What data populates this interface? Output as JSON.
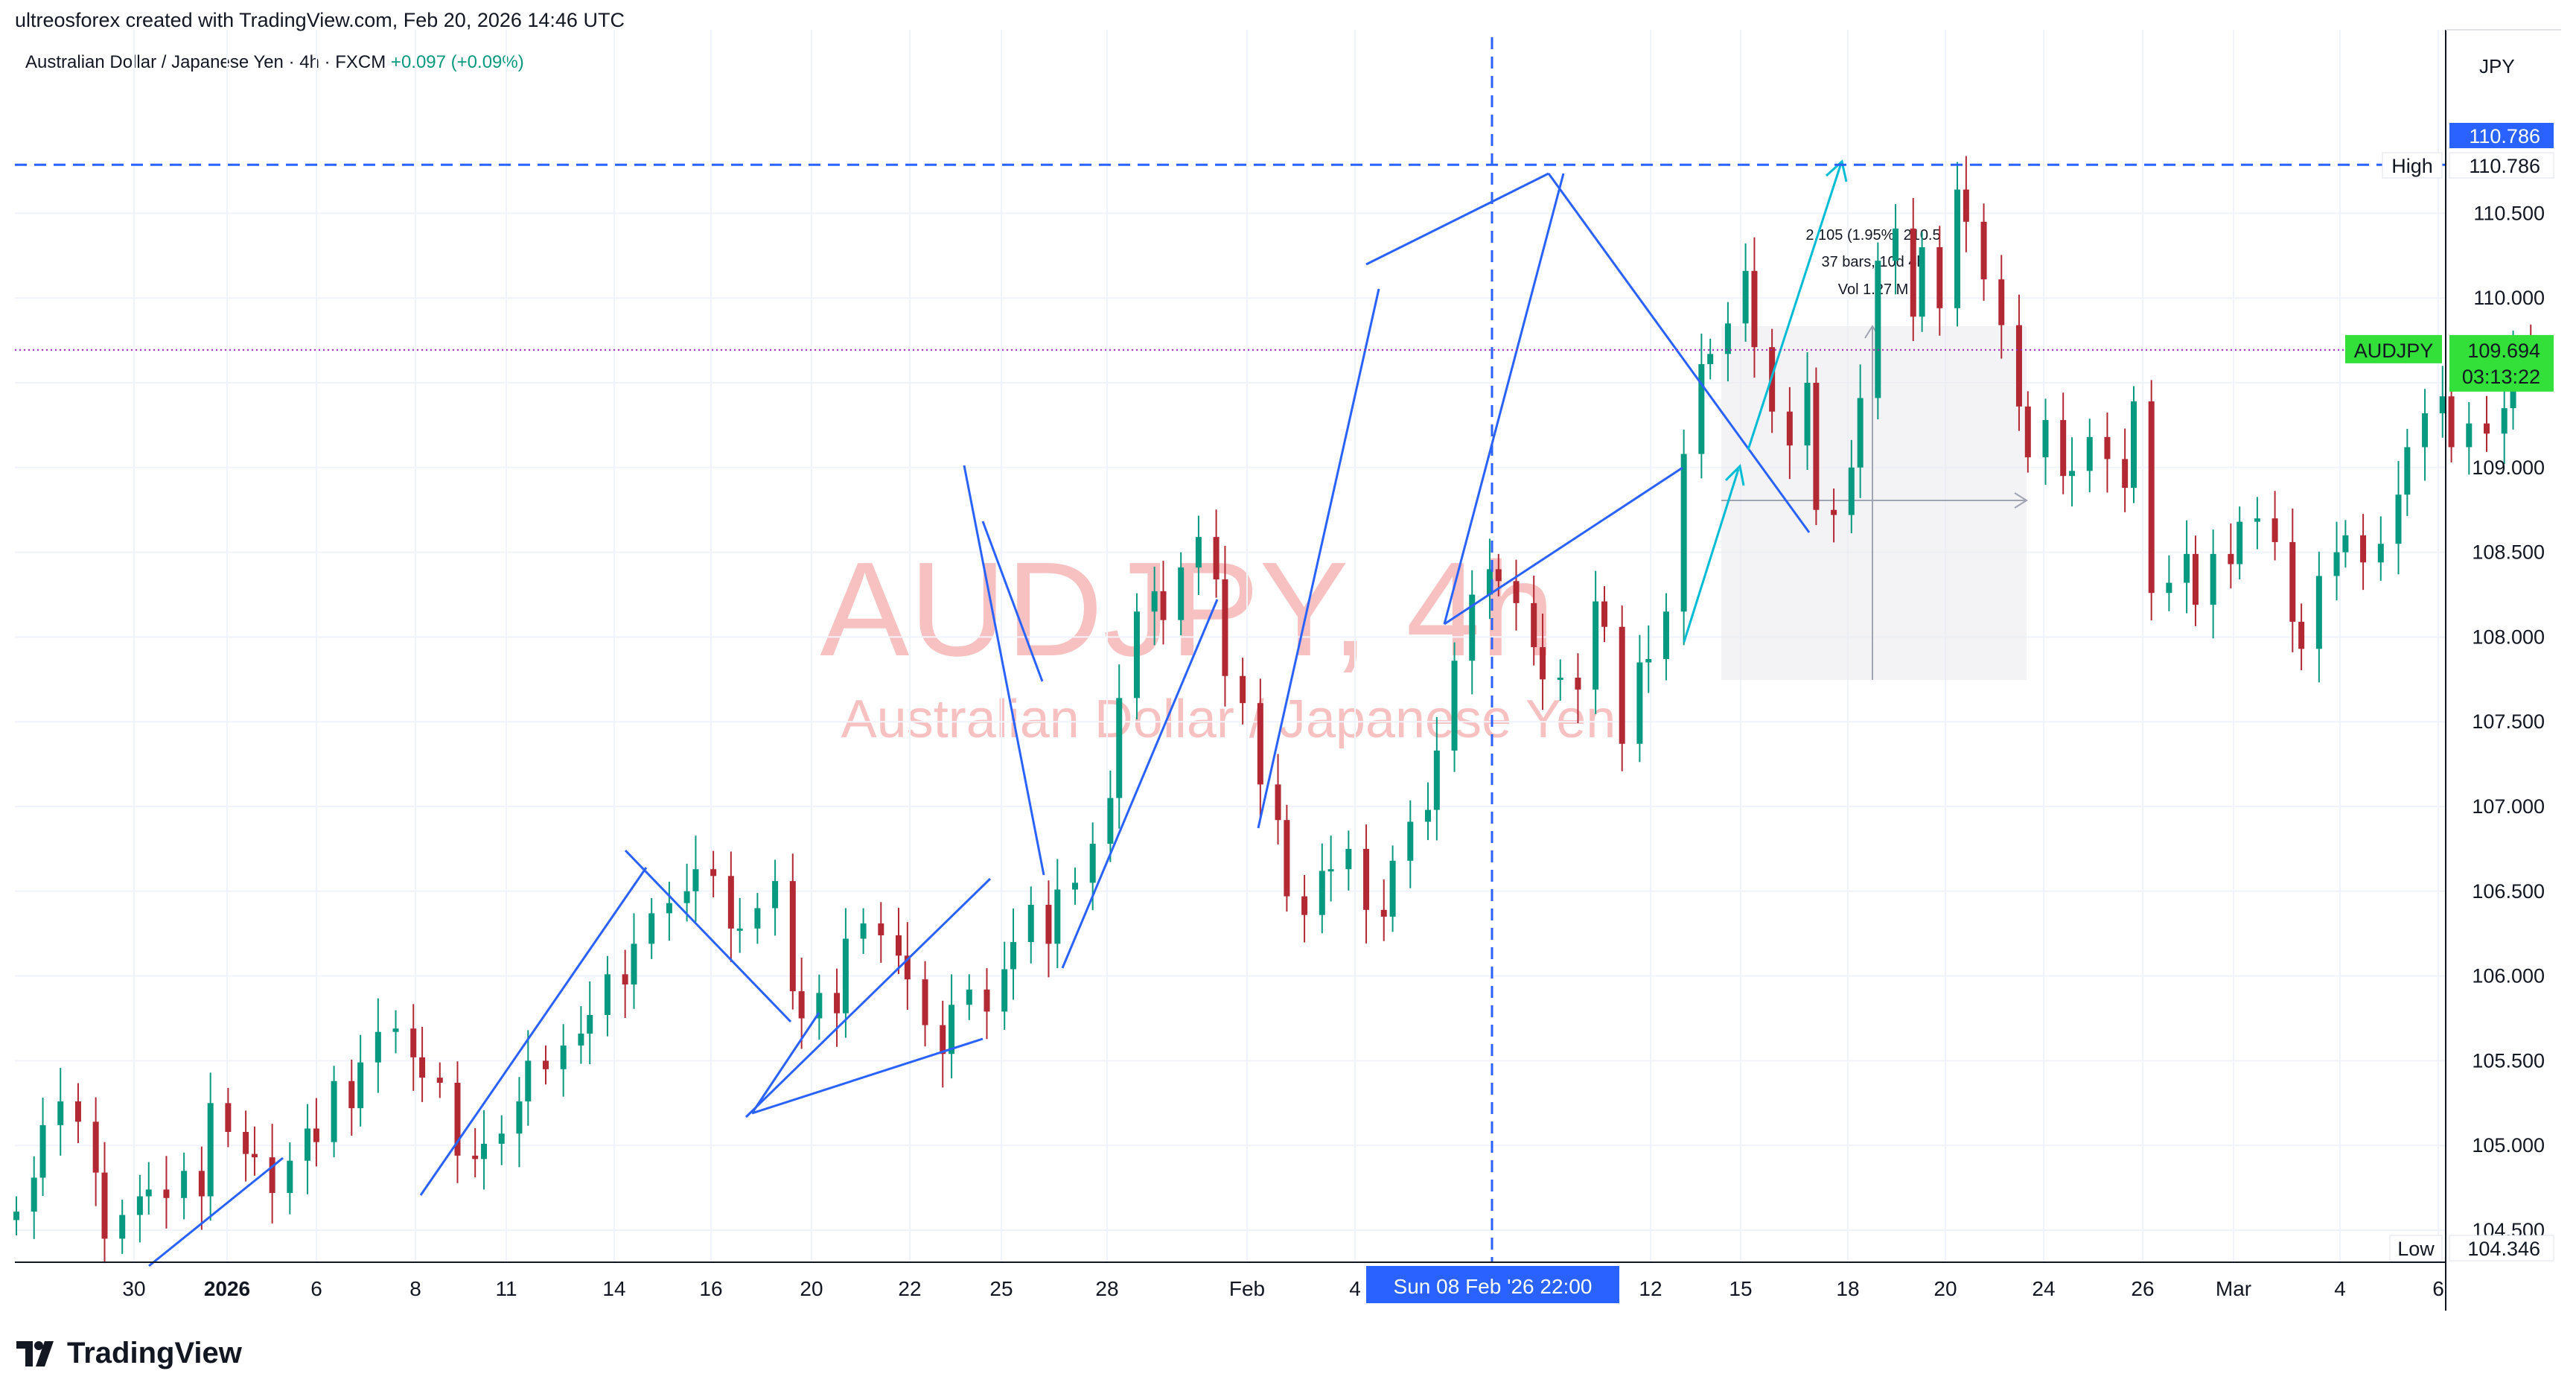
{
  "header": {
    "credit": "ultreosforex created with TradingView.com, Feb 20, 2026 14:46 UTC",
    "symbol_desc": "Australian Dollar / Japanese Yen · 4h · FXCM",
    "change": "+0.097 (+0.09%)"
  },
  "watermark": {
    "big": "AUDJPY, 4h",
    "small": "Australian Dollar / Japanese Yen"
  },
  "brand": {
    "name": "TradingView"
  },
  "colors": {
    "up": "#089981",
    "down": "#b22833",
    "drawing": "#2962ff",
    "projection": "#00bcd4",
    "price_badge": "#33e03a",
    "blue_label": "#2962ff"
  },
  "chart_data": {
    "type": "candlestick",
    "currency": "JPY",
    "ylim": [
      104.1,
      111.4
    ],
    "y_ticks": [
      "104.500",
      "105.000",
      "105.500",
      "106.000",
      "106.500",
      "107.000",
      "107.500",
      "108.000",
      "108.500",
      "109.000",
      "109.500",
      "110.000",
      "110.500"
    ],
    "x_ticks": [
      "30",
      "2026",
      "6",
      "8",
      "11",
      "14",
      "16",
      "20",
      "22",
      "25",
      "28",
      "Feb",
      "4",
      "12",
      "15",
      "18",
      "20",
      "24",
      "26",
      "Mar",
      "4",
      "6"
    ],
    "bar_count": 286,
    "closes": [
      104.61,
      104.81,
      105.12,
      105.26,
      105.14,
      104.84,
      104.45,
      104.59,
      104.7,
      104.74,
      104.69,
      104.85,
      104.7,
      105.25,
      105.08,
      104.95,
      104.93,
      104.72,
      104.91,
      105.1,
      105.02,
      105.38,
      105.22,
      105.49,
      105.67,
      105.69,
      105.52,
      105.4,
      105.37,
      104.94,
      104.92,
      105.01,
      105.07,
      105.26,
      105.5,
      105.45,
      105.59,
      105.66,
      105.77,
      106.01,
      105.95,
      106.19,
      106.37,
      106.43,
      106.5,
      106.63,
      106.59,
      106.28,
      106.28,
      106.4,
      106.56,
      105.91,
      105.75,
      105.9,
      105.78,
      106.22,
      106.31,
      106.24,
      106.12,
      105.98,
      105.71,
      105.54,
      105.83,
      105.92,
      105.79,
      106.04,
      106.2,
      106.42,
      106.19,
      106.51,
      106.55,
      106.78,
      107.05,
      107.64,
      108.15,
      108.27,
      108.1,
      108.41,
      108.59,
      108.34,
      107.77,
      107.61,
      107.13,
      106.92,
      106.47,
      106.36,
      106.62,
      106.63,
      106.75,
      106.39,
      106.35,
      106.68,
      106.91,
      106.98,
      107.33,
      107.86,
      108.25,
      108.4,
      108.33,
      108.2,
      107.94,
      107.75,
      107.76,
      107.69,
      108.21,
      108.06,
      107.37,
      107.85,
      107.87,
      108.15,
      109.08,
      109.61,
      109.67,
      109.85,
      110.16,
      109.71,
      109.33,
      109.13,
      109.5,
      108.75,
      108.72,
      109.0,
      109.41,
      110.22,
      110.41,
      109.89,
      110.3,
      109.94,
      110.64,
      110.45,
      110.11,
      109.84,
      109.36,
      109.06,
      109.28,
      108.95,
      108.98,
      109.18,
      109.05,
      108.88,
      109.39,
      108.26,
      108.32,
      108.49,
      108.19,
      108.49,
      108.43,
      108.68,
      108.7,
      108.56,
      108.09,
      107.93,
      108.36,
      108.5,
      108.6,
      108.44,
      108.55,
      108.84,
      109.12,
      109.32,
      109.42,
      109.12,
      109.26,
      109.2,
      109.35,
      109.7,
      109.69
    ],
    "price_tags": {
      "high": "110.786",
      "low": "104.346",
      "last": "109.694",
      "countdown": "03:13:22",
      "label_high": "High",
      "label_low": "Low",
      "symbol": "AUDJPY"
    },
    "crosshair_label": "Sun 08 Feb '26   22:00",
    "measure": {
      "line1": "2.105 (1.95%) 210.5",
      "line2": "37 bars, 10d 4h",
      "line3": "Vol 1.27 M"
    }
  }
}
